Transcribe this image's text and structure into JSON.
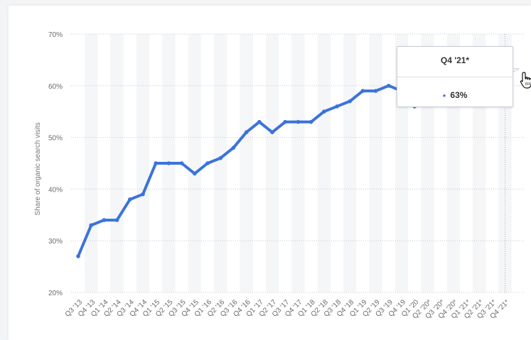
{
  "chart_data": {
    "type": "line",
    "title": "",
    "xlabel": "",
    "ylabel": "Share of organic search visits",
    "ylim": [
      20,
      70
    ],
    "y_ticks": [
      "20%",
      "30%",
      "40%",
      "50%",
      "60%",
      "70%"
    ],
    "y_tick_values": [
      20,
      30,
      40,
      50,
      60,
      70
    ],
    "grid": true,
    "categories": [
      "Q3 '13",
      "Q4 '13",
      "Q1 '14",
      "Q2 '14",
      "Q3 '14",
      "Q4 '14",
      "Q1 '15",
      "Q2 '15",
      "Q3 '15",
      "Q4 '15",
      "Q1 '16",
      "Q2 '16",
      "Q3 '16",
      "Q4 '16",
      "Q1 '17",
      "Q2 '17",
      "Q3 '17",
      "Q4 '17",
      "Q1 '18",
      "Q2 '18",
      "Q3 '18",
      "Q4 '18",
      "Q1 '19",
      "Q2 '19",
      "Q3 '19",
      "Q4 '19",
      "Q1 '20",
      "Q2 '20*",
      "Q3 '20*",
      "Q4 '20*",
      "Q1 '21*",
      "Q2 '21*",
      "Q3 '21*",
      "Q4 '21*"
    ],
    "series": [
      {
        "values": [
          27,
          33,
          34,
          34,
          38,
          39,
          45,
          45,
          45,
          43,
          45,
          46,
          48,
          51,
          53,
          51,
          53,
          53,
          53,
          55,
          56,
          57,
          59,
          59,
          60,
          59,
          56,
          null,
          null,
          null,
          null,
          null,
          null,
          63
        ]
      }
    ],
    "color": "#3b73d9"
  },
  "tooltip": {
    "title": "Q4 '21*",
    "value": "63%"
  },
  "icons": {
    "cursor": "hand-pointer-icon"
  }
}
